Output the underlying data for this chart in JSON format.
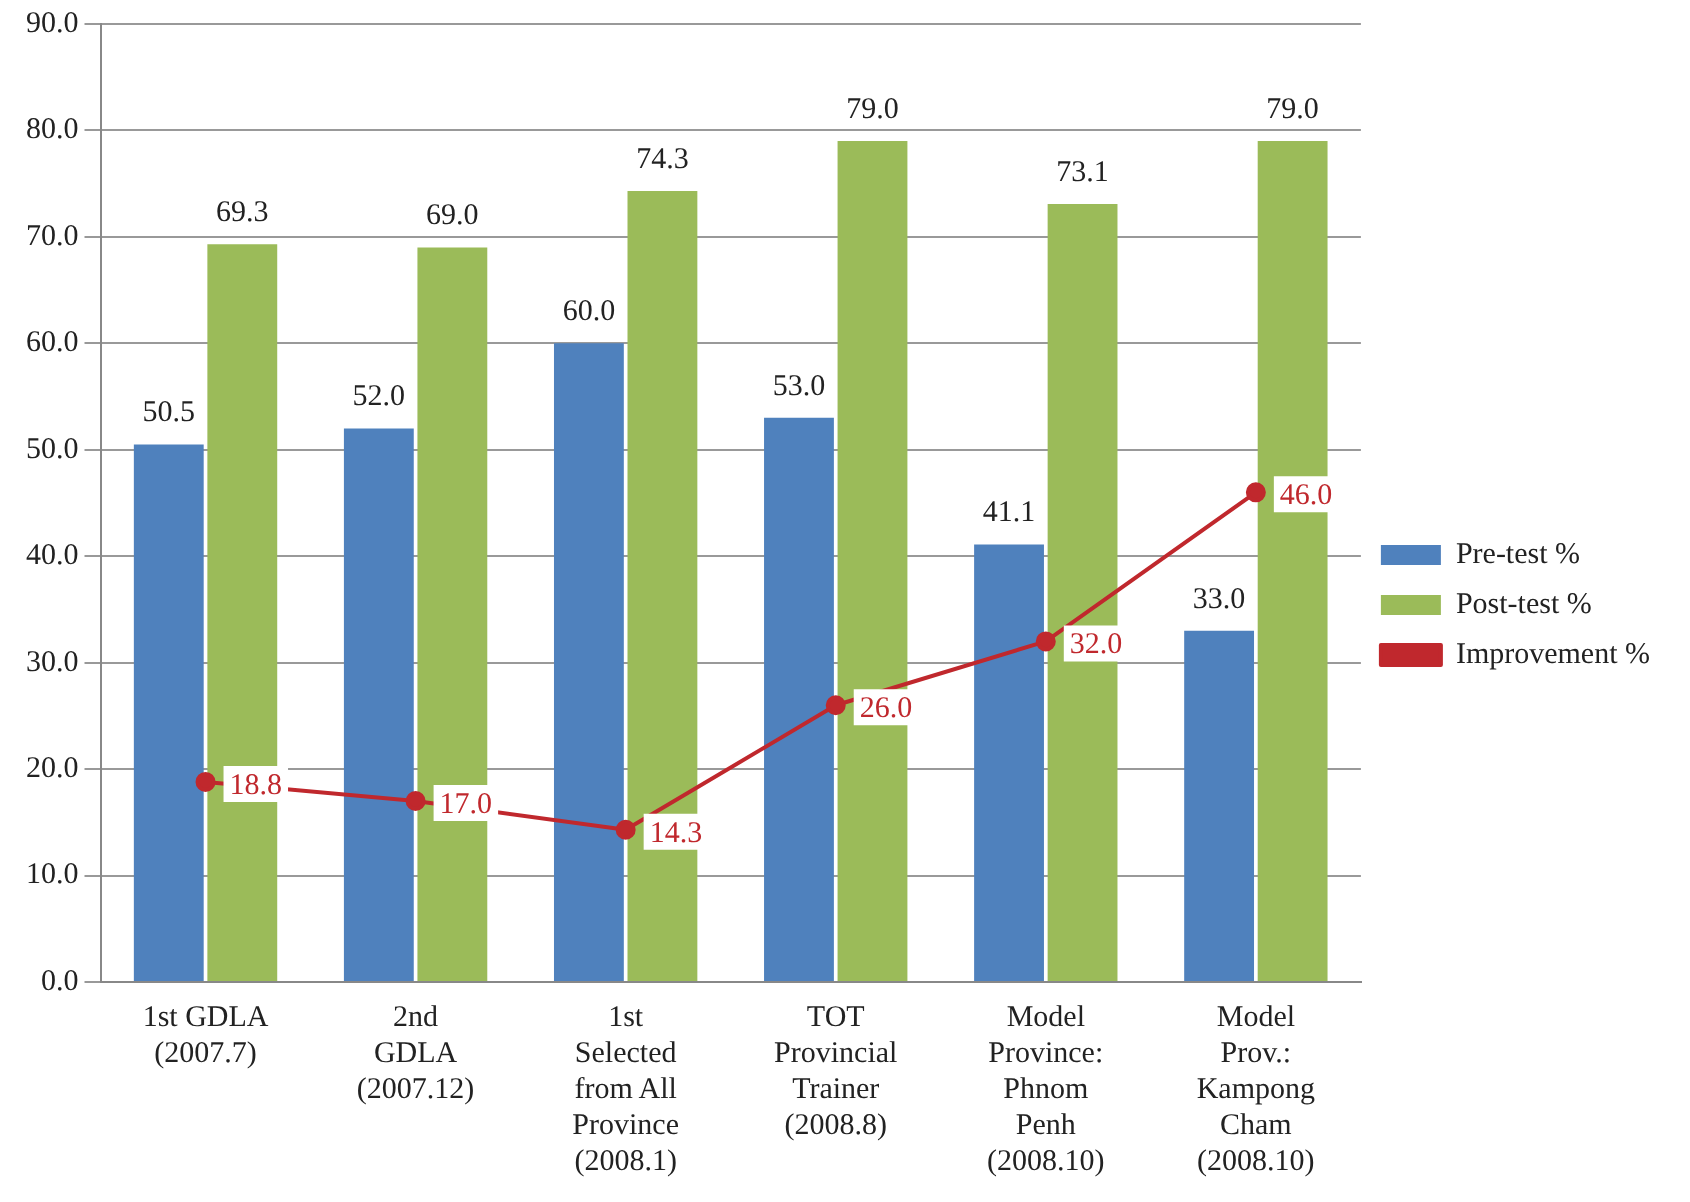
{
  "chart_data": {
    "type": "bar",
    "categories": [
      "1st GDLA\n(2007.7)",
      "2nd\nGDLA\n(2007.12)",
      "1st\nSelected\nfrom All\nProvince\n(2008.1)",
      "TOT\nProvincial\nTrainer\n(2008.8)",
      "Model\nProvince:\nPhnom\nPenh\n(2008.10)",
      "Model\nProv.:\nKampong\nCham\n(2008.10)"
    ],
    "series": [
      {
        "name": "Pre-test %",
        "color": "#4f81bd",
        "values": [
          50.5,
          52.0,
          60.0,
          53.0,
          41.1,
          33.0
        ],
        "value_labels": [
          "50.5",
          "52.0",
          "60.0",
          "53.0",
          "41.1",
          "33.0"
        ]
      },
      {
        "name": "Post-test %",
        "color": "#9bbb59",
        "values": [
          69.3,
          69.0,
          74.3,
          79.0,
          73.1,
          79.0
        ],
        "value_labels": [
          "69.3",
          "69.0",
          "74.3",
          "79.0",
          "73.1",
          "79.0"
        ]
      },
      {
        "name": "Improvement %",
        "type": "line",
        "color": "#c0282d",
        "values": [
          18.8,
          17.0,
          14.3,
          26.0,
          32.0,
          46.0
        ],
        "value_labels": [
          "18.8",
          "17.0",
          "14.3",
          "26.0",
          "32.0",
          "46.0"
        ]
      }
    ],
    "ylim": [
      0,
      90
    ],
    "yticks": [
      {
        "value": 0,
        "label": "0.0"
      },
      {
        "value": 10,
        "label": "10.0"
      },
      {
        "value": 20,
        "label": "20.0"
      },
      {
        "value": 30,
        "label": "30.0"
      },
      {
        "value": 40,
        "label": "40.0"
      },
      {
        "value": 50,
        "label": "50.0"
      },
      {
        "value": 60,
        "label": "60.0"
      },
      {
        "value": 70,
        "label": "70.0"
      },
      {
        "value": 80,
        "label": "80.0"
      },
      {
        "value": 90,
        "label": "90.0"
      }
    ],
    "grid": "y",
    "legend": "right",
    "marker": "circle",
    "line_style": "solid"
  }
}
